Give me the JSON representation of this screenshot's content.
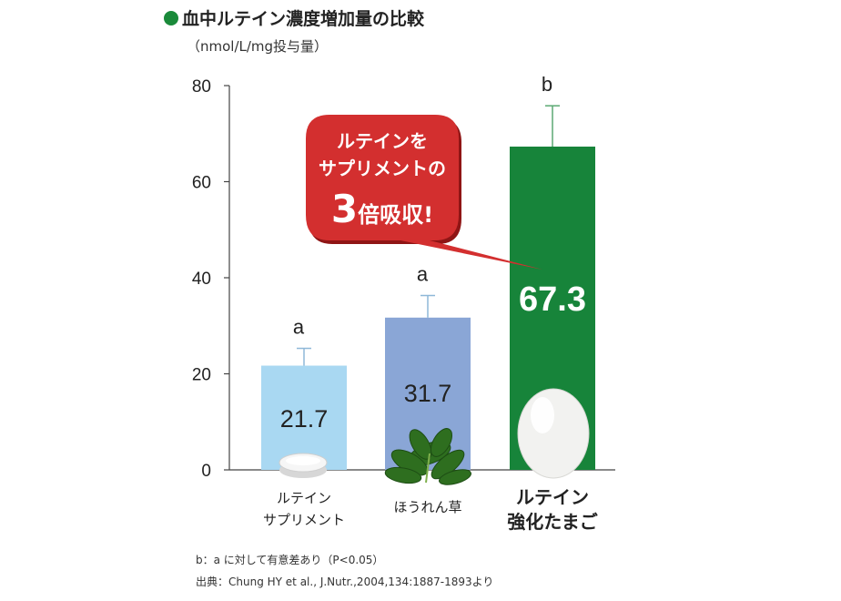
{
  "title": "血中ルテイン濃度増加量の比較",
  "unit": "（nmol/L/mg投与量）",
  "colors": {
    "title_dot": "#1a8a3a",
    "callout": "#d32f2f"
  },
  "chart_data": {
    "type": "bar",
    "categories": [
      {
        "line1": "ルテイン",
        "line2": "サプリメント",
        "bold": false
      },
      {
        "line1": "ほうれん草",
        "line2": "",
        "bold": false
      },
      {
        "line1": "ルテイン",
        "line2": "強化たまご",
        "bold": true
      }
    ],
    "values": [
      21.7,
      31.7,
      67.3
    ],
    "value_labels": [
      "21.7",
      "31.7",
      "67.3"
    ],
    "error_upper": [
      25.3,
      36.3,
      75.8
    ],
    "significance": [
      "a",
      "a",
      "b"
    ],
    "colors": [
      "#a9d8f2",
      "#8aa6d6",
      "#17843a"
    ],
    "ylim": [
      0,
      80
    ],
    "yticks": [
      "0",
      "20",
      "40",
      "60",
      "80"
    ],
    "icons": [
      "tablet-icon",
      "spinach-icon",
      "egg-icon"
    ]
  },
  "callout": {
    "line1": "ルテインを",
    "line2": "サプリメントの",
    "emphasis": "3",
    "line3_rest": "倍吸収!"
  },
  "footnotes": {
    "significance": "b：a に対して有意差あり（P<0.05）",
    "source": "出典：Chung HY et al., J.Nutr.,2004,134:1887-1893より"
  }
}
